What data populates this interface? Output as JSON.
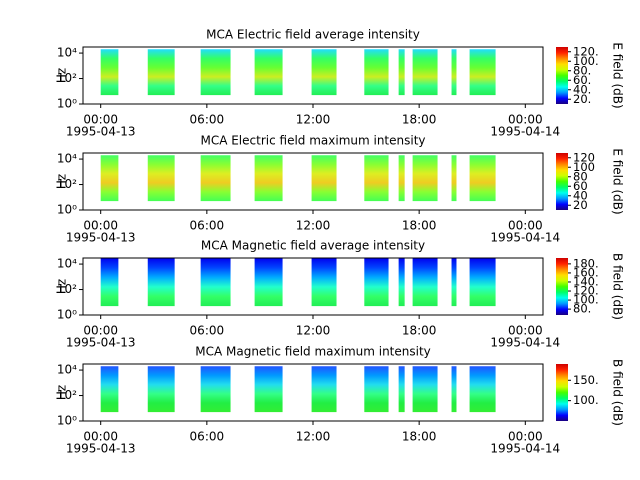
{
  "chart_data": [
    {
      "type": "spectrogram",
      "title": "MCA  Electric field average intensity",
      "ylabel": "Hz",
      "colorbar_label": "E field (dB)",
      "log_y": true,
      "xlim": [
        -1,
        25
      ],
      "ylim": [
        1,
        30000
      ],
      "xticks": [
        {
          "value": 0,
          "label": "00:00"
        },
        {
          "value": 6,
          "label": "06:00"
        },
        {
          "value": 12,
          "label": "12:00"
        },
        {
          "value": 18,
          "label": "18:00"
        },
        {
          "value": 24,
          "label": "00:00"
        }
      ],
      "xdates": [
        {
          "value": 0,
          "label": "1995-04-13"
        },
        {
          "value": 24,
          "label": "1995-04-14"
        }
      ],
      "yticks": [
        {
          "value": 1,
          "label": "10⁰"
        },
        {
          "value": 100,
          "label": "10²"
        },
        {
          "value": 10000,
          "label": "10⁴"
        }
      ],
      "clim": [
        10,
        130
      ],
      "cticks": [
        {
          "value": 20,
          "label": "20."
        },
        {
          "value": 40,
          "label": "40."
        },
        {
          "value": 60,
          "label": "60."
        },
        {
          "value": 80,
          "label": "80."
        },
        {
          "value": 100,
          "label": "100."
        },
        {
          "value": 120,
          "label": "120."
        }
      ],
      "frange": [
        5,
        20000
      ],
      "spans": [
        [
          0,
          1.0
        ],
        [
          2.66,
          4.18
        ],
        [
          5.65,
          7.34
        ],
        [
          8.7,
          10.28
        ],
        [
          11.92,
          13.33
        ],
        [
          14.9,
          16.27
        ],
        [
          16.84,
          17.18
        ],
        [
          17.63,
          19.04
        ],
        [
          19.83,
          20.11
        ],
        [
          20.85,
          22.32
        ]
      ],
      "block_colors": [
        "#22ddff",
        "#33ff66",
        "#66ff33",
        "#ccee22",
        "#33ff88",
        "#22ee55"
      ]
    },
    {
      "type": "spectrogram",
      "title": "MCA  Electric field maximum intensity",
      "ylabel": "Hz",
      "colorbar_label": "E field (dB)",
      "log_y": true,
      "xlim": [
        -1,
        25
      ],
      "ylim": [
        1,
        30000
      ],
      "xticks": [
        {
          "value": 0,
          "label": "00:00"
        },
        {
          "value": 6,
          "label": "06:00"
        },
        {
          "value": 12,
          "label": "12:00"
        },
        {
          "value": 18,
          "label": "18:00"
        },
        {
          "value": 24,
          "label": "00:00"
        }
      ],
      "xdates": [
        {
          "value": 0,
          "label": "1995-04-13"
        },
        {
          "value": 24,
          "label": "1995-04-14"
        }
      ],
      "yticks": [
        {
          "value": 1,
          "label": "10⁰"
        },
        {
          "value": 100,
          "label": "10²"
        },
        {
          "value": 10000,
          "label": "10⁴"
        }
      ],
      "clim": [
        10,
        130
      ],
      "cticks": [
        20,
        40,
        60,
        80,
        100,
        120
      ],
      "frange": [
        5,
        20000
      ],
      "spans": [
        [
          0,
          1.0
        ],
        [
          2.66,
          4.18
        ],
        [
          5.65,
          7.34
        ],
        [
          8.7,
          10.28
        ],
        [
          11.92,
          13.33
        ],
        [
          14.9,
          16.27
        ],
        [
          16.84,
          17.18
        ],
        [
          17.63,
          19.04
        ],
        [
          19.83,
          20.11
        ],
        [
          20.85,
          22.32
        ]
      ],
      "block_colors": [
        "#44ff66",
        "#88ff33",
        "#ddee22",
        "#eecc22",
        "#88ff33",
        "#44ff55"
      ]
    },
    {
      "type": "spectrogram",
      "title": "MCA  Magnetic field average intensity",
      "ylabel": "Hz",
      "colorbar_label": "B field (dB)",
      "log_y": true,
      "xlim": [
        -1,
        25
      ],
      "ylim": [
        1,
        30000
      ],
      "xticks": [
        {
          "value": 0,
          "label": "00:00"
        },
        {
          "value": 6,
          "label": "06:00"
        },
        {
          "value": 12,
          "label": "12:00"
        },
        {
          "value": 18,
          "label": "18:00"
        },
        {
          "value": 24,
          "label": "00:00"
        }
      ],
      "xdates": [
        {
          "value": 0,
          "label": "1995-04-13"
        },
        {
          "value": 24,
          "label": "1995-04-14"
        }
      ],
      "yticks": [
        {
          "value": 1,
          "label": "10⁰"
        },
        {
          "value": 100,
          "label": "10²"
        },
        {
          "value": 10000,
          "label": "10⁴"
        }
      ],
      "clim": [
        67,
        193
      ],
      "cticks": [
        {
          "value": 80,
          "label": "80."
        },
        {
          "value": 100,
          "label": "100."
        },
        {
          "value": 120,
          "label": "120."
        },
        {
          "value": 140,
          "label": "140."
        },
        {
          "value": 160,
          "label": "160."
        },
        {
          "value": 180,
          "label": "180."
        }
      ],
      "frange": [
        5,
        30000
      ],
      "spans": [
        [
          0,
          1.0
        ],
        [
          2.66,
          4.18
        ],
        [
          5.65,
          7.34
        ],
        [
          8.7,
          10.28
        ],
        [
          11.92,
          13.33
        ],
        [
          14.9,
          16.27
        ],
        [
          16.84,
          17.18
        ],
        [
          17.63,
          19.04
        ],
        [
          19.83,
          20.11
        ],
        [
          20.85,
          22.32
        ]
      ],
      "block_colors": [
        "#0000ee",
        "#0044ff",
        "#00aaff",
        "#22ffcc",
        "#33ff66",
        "#22ee55"
      ]
    },
    {
      "type": "spectrogram",
      "title": "MCA  Magnetic field maximum intensity",
      "ylabel": "Hz",
      "colorbar_label": "B field (dB)",
      "log_y": true,
      "xlim": [
        -1,
        25
      ],
      "ylim": [
        1,
        30000
      ],
      "xticks": [
        {
          "value": 0,
          "label": "00:00"
        },
        {
          "value": 6,
          "label": "06:00"
        },
        {
          "value": 12,
          "label": "12:00"
        },
        {
          "value": 18,
          "label": "18:00"
        },
        {
          "value": 24,
          "label": "00:00"
        }
      ],
      "xdates": [
        {
          "value": 0,
          "label": "1995-04-13"
        },
        {
          "value": 24,
          "label": "1995-04-14"
        }
      ],
      "yticks": [
        {
          "value": 1,
          "label": "10⁰"
        },
        {
          "value": 100,
          "label": "10²"
        },
        {
          "value": 10000,
          "label": "10⁴"
        }
      ],
      "clim": [
        50,
        190
      ],
      "cticks": [
        {
          "value": 100,
          "label": "100."
        },
        {
          "value": 150,
          "label": "150."
        }
      ],
      "frange": [
        5,
        20000
      ],
      "spans": [
        [
          0,
          1.0
        ],
        [
          2.66,
          4.18
        ],
        [
          5.65,
          7.34
        ],
        [
          8.7,
          10.28
        ],
        [
          11.92,
          13.33
        ],
        [
          14.9,
          16.27
        ],
        [
          16.84,
          17.18
        ],
        [
          17.63,
          19.04
        ],
        [
          19.83,
          20.11
        ],
        [
          20.85,
          22.32
        ]
      ],
      "block_colors": [
        "#2255ff",
        "#0099ff",
        "#22ddee",
        "#33ff88",
        "#22ee44",
        "#33ee33"
      ]
    }
  ],
  "colormap": [
    "#1a0080",
    "#0000ff",
    "#0099ff",
    "#00ffee",
    "#00ff66",
    "#44ff00",
    "#ccff00",
    "#ffdd00",
    "#ff8800",
    "#ff2200",
    "#cc0000"
  ]
}
